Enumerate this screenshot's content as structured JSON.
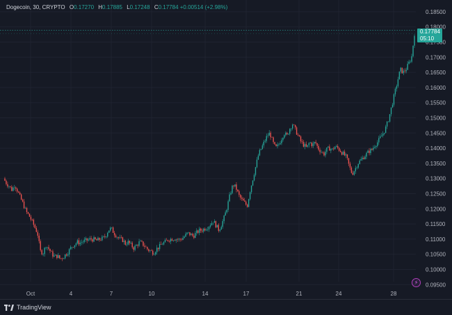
{
  "legend": {
    "symbol": "Dogecoin, 30, CRYPTO",
    "o_label": "O",
    "o_value": "0.17270",
    "h_label": "H",
    "h_value": "0.17885",
    "l_label": "L",
    "l_value": "0.17248",
    "c_label": "C",
    "c_value": "0.17784",
    "change": "+0.00514 (+2.98%)"
  },
  "price_tag": {
    "price": "0.17784",
    "countdown": "05:10"
  },
  "footer": {
    "brand": "TradingView"
  },
  "colors": {
    "background": "#161a25",
    "up": "#26a69a",
    "down": "#ef5350",
    "grid": "#1f2330",
    "axis_text": "#b2b5be",
    "high_line": "#26a69a"
  },
  "chart_data": {
    "type": "line",
    "title": "Dogecoin, 30, CRYPTO",
    "ylim": [
      0.093,
      0.1875
    ],
    "y_ticks": [
      "0.18500",
      "0.18000",
      "0.17500",
      "0.17000",
      "0.16500",
      "0.16000",
      "0.15500",
      "0.15000",
      "0.14500",
      "0.14000",
      "0.13500",
      "0.13000",
      "0.12500",
      "0.12000",
      "0.11500",
      "0.11000",
      "0.10500",
      "0.10000",
      "0.09500"
    ],
    "x_ticks": [
      "Oct",
      "4",
      "7",
      "10",
      "14",
      "17",
      "21",
      "24",
      "28"
    ],
    "high_marker": 0.17885,
    "last_price": 0.17784,
    "series": [
      {
        "values": [
          0.13,
          0.1285,
          0.1275,
          0.1262,
          0.128,
          0.1258,
          0.1235,
          0.1215,
          0.119,
          0.1178,
          0.116,
          0.114,
          0.112,
          0.106,
          0.1055,
          0.108,
          0.1068,
          0.1052,
          0.1042,
          0.1045,
          0.1035,
          0.104,
          0.105,
          0.106,
          0.1075,
          0.1082,
          0.109,
          0.1088,
          0.1092,
          0.1095,
          0.1098,
          0.11,
          0.1098,
          0.1095,
          0.11,
          0.1102,
          0.111,
          0.113,
          0.1135,
          0.112,
          0.111,
          0.11,
          0.1098,
          0.1085,
          0.109,
          0.108,
          0.107,
          0.108,
          0.109,
          0.1085,
          0.1075,
          0.1065,
          0.106,
          0.1055,
          0.1068,
          0.1075,
          0.1085,
          0.109,
          0.1098,
          0.11,
          0.1102,
          0.11,
          0.1098,
          0.1102,
          0.111,
          0.112,
          0.1115,
          0.111,
          0.112,
          0.1128,
          0.113,
          0.1135,
          0.114,
          0.115,
          0.116,
          0.1145,
          0.113,
          0.115,
          0.1175,
          0.121,
          0.125,
          0.128,
          0.127,
          0.1245,
          0.123,
          0.122,
          0.121,
          0.126,
          0.13,
          0.134,
          0.138,
          0.14,
          0.142,
          0.144,
          0.145,
          0.142,
          0.14,
          0.141,
          0.143,
          0.145,
          0.144,
          0.1465,
          0.148,
          0.146,
          0.144,
          0.142,
          0.141,
          0.14,
          0.142,
          0.141,
          0.142,
          0.14,
          0.139,
          0.138,
          0.1395,
          0.14,
          0.1395,
          0.1405,
          0.14,
          0.139,
          0.138,
          0.137,
          0.134,
          0.1315,
          0.133,
          0.135,
          0.136,
          0.137,
          0.138,
          0.139,
          0.1395,
          0.141,
          0.142,
          0.1435,
          0.145,
          0.147,
          0.15,
          0.154,
          0.158,
          0.162,
          0.166,
          0.165,
          0.166,
          0.168,
          0.17,
          0.1778
        ]
      }
    ]
  }
}
